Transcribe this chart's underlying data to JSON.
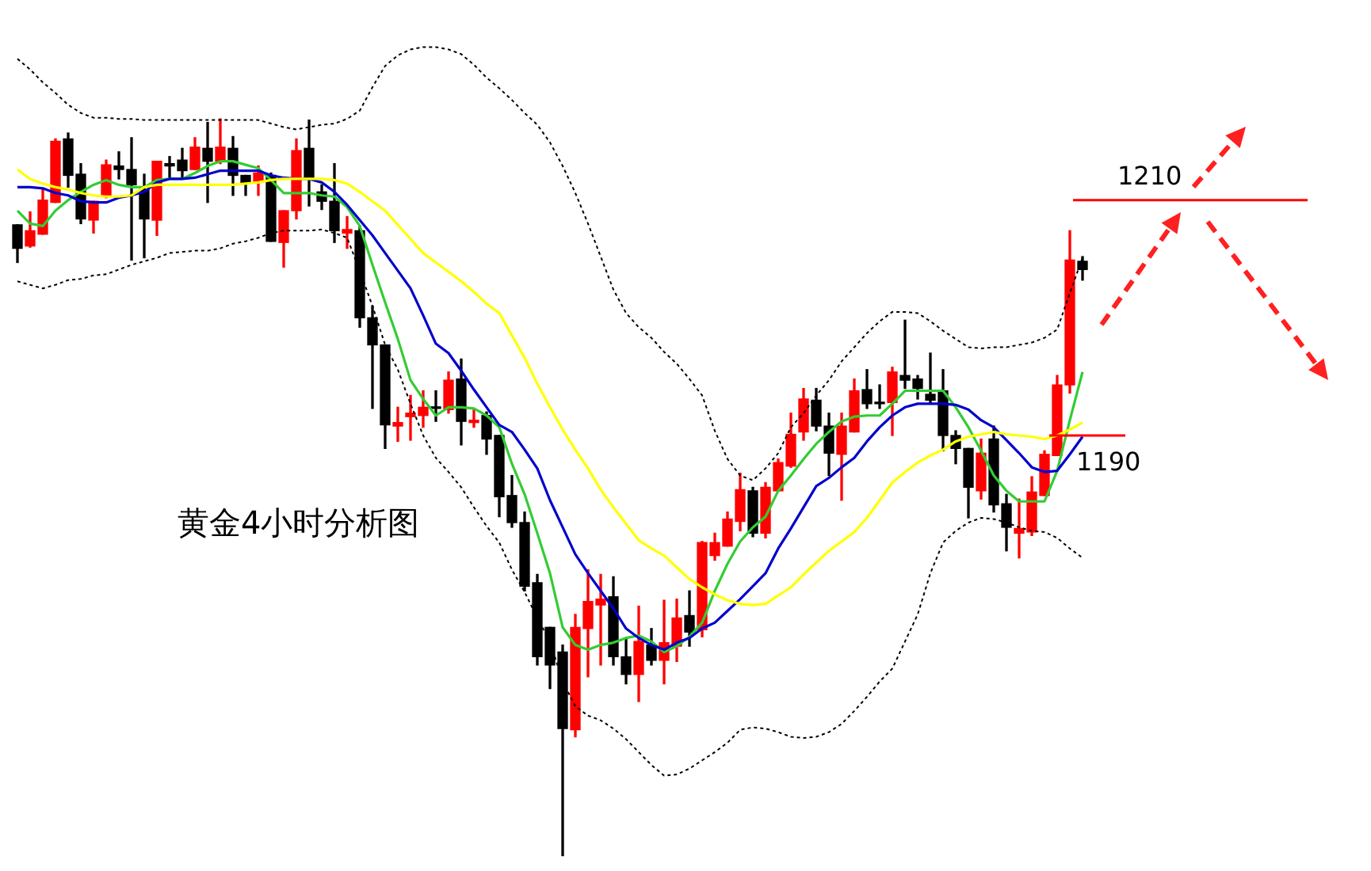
{
  "chart_data": {
    "type": "candlestick",
    "ylim": [
      1153,
      1227
    ],
    "tick_labels": false,
    "annotations": [
      "黄金4小时分析图"
    ],
    "ref_lines": [
      {
        "axis": "y",
        "value": 1210,
        "label": "1210",
        "color": "#ff0000"
      },
      {
        "axis": "y",
        "value": 1190,
        "label": "1190",
        "color": "#ff0000"
      }
    ],
    "categories": [
      null,
      null,
      null,
      null,
      null,
      null,
      null,
      null,
      null,
      null,
      null,
      null,
      null,
      null,
      null,
      null,
      null,
      null,
      null,
      null,
      null,
      null,
      null,
      null,
      null,
      null,
      null,
      null,
      null,
      null,
      null,
      null,
      null,
      null,
      null,
      null,
      null,
      null,
      null,
      null,
      null,
      null,
      null,
      null,
      null,
      null,
      null,
      null,
      null,
      null,
      null,
      null,
      null,
      null,
      null,
      null,
      null,
      null,
      null,
      null,
      null,
      null,
      null,
      null,
      null,
      null,
      null,
      null,
      null,
      null,
      null,
      null,
      null,
      null,
      null,
      null,
      null,
      null,
      null,
      null,
      null,
      null,
      null,
      null,
      null
    ],
    "ohlc": [
      [
        1207.9,
        1207.9,
        1204.7,
        1205.9
      ],
      [
        1206.1,
        1209.0,
        1206.0,
        1207.4
      ],
      [
        1207.1,
        1210.9,
        1207.1,
        1210.0
      ],
      [
        1209.8,
        1215.2,
        1209.8,
        1215.0
      ],
      [
        1215.2,
        1215.7,
        1211.1,
        1212.1
      ],
      [
        1212.2,
        1213.1,
        1208.0,
        1208.4
      ],
      [
        1208.3,
        1209.9,
        1207.2,
        1209.9
      ],
      [
        1210.4,
        1213.4,
        1210.2,
        1213.0
      ],
      [
        1212.9,
        1214.1,
        1211.8,
        1212.6
      ],
      [
        1212.6,
        1215.3,
        1204.9,
        1211.3
      ],
      [
        1210.9,
        1212.2,
        1205.1,
        1208.4
      ],
      [
        1208.3,
        1213.3,
        1207.0,
        1213.3
      ],
      [
        1213.1,
        1213.7,
        1211.8,
        1212.9
      ],
      [
        1213.4,
        1214.4,
        1211.8,
        1212.5
      ],
      [
        1212.6,
        1215.3,
        1212.6,
        1214.5
      ],
      [
        1214.4,
        1216.6,
        1209.8,
        1213.3
      ],
      [
        1213.3,
        1216.9,
        1213.1,
        1214.5
      ],
      [
        1214.4,
        1215.4,
        1210.4,
        1212.1
      ],
      [
        1212.1,
        1212.1,
        1210.4,
        1211.5
      ],
      [
        1211.5,
        1212.9,
        1210.4,
        1212.3
      ],
      [
        1212.1,
        1212.3,
        1206.5,
        1206.5
      ],
      [
        1206.4,
        1209.1,
        1204.3,
        1209.1
      ],
      [
        1209.1,
        1215.2,
        1208.4,
        1214.2
      ],
      [
        1214.4,
        1216.8,
        1209.5,
        1211.9
      ],
      [
        1210.7,
        1211.3,
        1209.2,
        1209.9
      ],
      [
        1209.9,
        1213.1,
        1206.4,
        1207.4
      ],
      [
        1207.2,
        1208.6,
        1205.9,
        1207.5
      ],
      [
        1207.4,
        1207.8,
        1199.2,
        1200.0
      ],
      [
        1200.0,
        1201.0,
        1192.3,
        1197.7
      ],
      [
        1197.7,
        1197.7,
        1188.9,
        1190.9
      ],
      [
        1190.8,
        1192.4,
        1189.5,
        1191.1
      ],
      [
        1191.6,
        1193.4,
        1189.6,
        1191.9
      ],
      [
        1191.7,
        1193.8,
        1190.7,
        1192.4
      ],
      [
        1192.4,
        1193.8,
        1191.2,
        1192.3
      ],
      [
        1192.2,
        1195.4,
        1191.9,
        1194.7
      ],
      [
        1194.8,
        1196.5,
        1189.2,
        1191.2
      ],
      [
        1191.1,
        1192.3,
        1190.7,
        1191.3
      ],
      [
        1191.7,
        1192.0,
        1188.4,
        1189.7
      ],
      [
        1190.0,
        1190.0,
        1183.1,
        1184.8
      ],
      [
        1184.9,
        1186.6,
        1182.2,
        1182.6
      ],
      [
        1182.6,
        1183.5,
        1176.8,
        1177.2
      ],
      [
        1177.5,
        1178.2,
        1170.5,
        1171.2
      ],
      [
        1173.7,
        1173.7,
        1168.5,
        1170.5
      ],
      [
        1171.6,
        1172.2,
        1154.3,
        1165.1
      ],
      [
        1165.0,
        1174.8,
        1164.4,
        1173.7
      ],
      [
        1173.6,
        1178.6,
        1169.5,
        1175.9
      ],
      [
        1175.6,
        1178.2,
        1170.5,
        1176.1
      ],
      [
        1176.3,
        1178.0,
        1170.5,
        1171.2
      ],
      [
        1171.2,
        1172.8,
        1168.9,
        1169.7
      ],
      [
        1169.7,
        1175.5,
        1167.4,
        1172.5
      ],
      [
        1172.2,
        1173.6,
        1170.5,
        1170.9
      ],
      [
        1170.9,
        1176.0,
        1168.9,
        1172.4
      ],
      [
        1172.1,
        1176.1,
        1170.8,
        1174.5
      ],
      [
        1174.7,
        1176.8,
        1172.1,
        1173.3
      ],
      [
        1173.5,
        1181.0,
        1172.9,
        1180.9
      ],
      [
        1179.8,
        1181.7,
        1179.4,
        1180.9
      ],
      [
        1180.6,
        1183.5,
        1180.6,
        1182.9
      ],
      [
        1182.7,
        1186.8,
        1181.9,
        1185.4
      ],
      [
        1185.3,
        1185.6,
        1181.4,
        1181.7
      ],
      [
        1181.7,
        1186.0,
        1181.3,
        1185.6
      ],
      [
        1185.3,
        1188.0,
        1185.3,
        1187.7
      ],
      [
        1187.4,
        1191.9,
        1187.3,
        1190.1
      ],
      [
        1190.3,
        1194.0,
        1189.6,
        1193.1
      ],
      [
        1193.0,
        1194.0,
        1190.4,
        1190.8
      ],
      [
        1190.8,
        1191.9,
        1186.6,
        1188.5
      ],
      [
        1188.4,
        1191.9,
        1184.5,
        1190.8
      ],
      [
        1190.3,
        1194.8,
        1190.3,
        1193.8
      ],
      [
        1193.9,
        1195.6,
        1192.3,
        1192.7
      ],
      [
        1192.8,
        1194.3,
        1192.3,
        1192.7
      ],
      [
        1192.8,
        1195.8,
        1190.0,
        1195.4
      ],
      [
        1195.1,
        1199.8,
        1194.0,
        1194.7
      ],
      [
        1194.8,
        1195.1,
        1193.1,
        1194.0
      ],
      [
        1193.5,
        1197.0,
        1192.7,
        1193.0
      ],
      [
        1193.8,
        1195.6,
        1188.7,
        1190.0
      ],
      [
        1190.0,
        1190.4,
        1187.6,
        1188.9
      ],
      [
        1188.9,
        1188.9,
        1183.0,
        1185.6
      ],
      [
        1185.3,
        1189.7,
        1184.6,
        1188.5
      ],
      [
        1189.7,
        1190.8,
        1183.5,
        1184.1
      ],
      [
        1184.2,
        1185.0,
        1180.2,
        1182.2
      ],
      [
        1181.7,
        1184.6,
        1179.6,
        1182.1
      ],
      [
        1181.8,
        1186.5,
        1181.5,
        1185.2
      ],
      [
        1184.9,
        1188.7,
        1184.9,
        1188.4
      ],
      [
        1188.3,
        1195.1,
        1188.3,
        1194.3
      ],
      [
        1194.3,
        1207.4,
        1193.6,
        1204.9
      ],
      [
        1204.8,
        1205.2,
        1203.2,
        1204.1
      ]
    ],
    "series": [
      {
        "type": "line",
        "color": "#000000",
        "line_style": "dotted",
        "values": [
          1222.0,
          1221.1,
          1220.0,
          1219.1,
          1218.1,
          1217.4,
          1217.0,
          1217.0,
          1216.9,
          1216.9,
          1216.8,
          1216.8,
          1216.8,
          1216.8,
          1216.8,
          1216.8,
          1216.8,
          1216.8,
          1216.8,
          1216.8,
          1216.5,
          1216.2,
          1216.0,
          1216.2,
          1216.4,
          1216.5,
          1216.9,
          1217.6,
          1219.6,
          1221.4,
          1222.3,
          1222.8,
          1223.0,
          1223.0,
          1222.8,
          1222.4,
          1221.5,
          1220.4,
          1219.5,
          1218.5,
          1217.4,
          1216.4,
          1214.9,
          1212.9,
          1210.6,
          1208.0,
          1205.2,
          1202.4,
          1200.4,
          1199.2,
          1198.3,
          1197.1,
          1196.1,
          1194.8,
          1193.4,
          1190.4,
          1188.0,
          1186.6,
          1186.2,
          1187.2,
          1188.5,
          1190.7,
          1191.9,
          1193.4,
          1194.7,
          1196.3,
          1197.5,
          1198.7,
          1199.7,
          1200.5,
          1200.5,
          1200.4,
          1199.7,
          1198.9,
          1198.2,
          1197.5,
          1197.4,
          1197.5,
          1197.5,
          1197.7,
          1197.9,
          1198.3,
          1199.0,
          1202.1,
          1205.1
        ]
      },
      {
        "type": "line",
        "color": "#000000",
        "line_style": "dotted",
        "values": [
          1203.1,
          1202.8,
          1202.5,
          1202.8,
          1203.2,
          1203.3,
          1203.6,
          1203.7,
          1204.1,
          1204.5,
          1204.8,
          1205.1,
          1205.5,
          1205.6,
          1205.7,
          1205.7,
          1205.9,
          1206.3,
          1206.5,
          1206.8,
          1207.2,
          1207.4,
          1207.4,
          1207.4,
          1207.5,
          1207.2,
          1206.8,
          1204.0,
          1201.0,
          1197.7,
          1195.6,
          1192.7,
          1190.0,
          1188.1,
          1186.9,
          1185.6,
          1183.9,
          1182.3,
          1180.9,
          1178.6,
          1176.7,
          1174.5,
          1172.5,
          1169.1,
          1167.0,
          1166.2,
          1165.8,
          1165.1,
          1164.2,
          1163.1,
          1162.0,
          1161.1,
          1161.2,
          1161.7,
          1162.4,
          1163.1,
          1163.9,
          1165.0,
          1165.2,
          1165.1,
          1164.8,
          1164.4,
          1164.3,
          1164.4,
          1164.8,
          1165.5,
          1166.6,
          1167.8,
          1169.1,
          1170.2,
          1172.5,
          1174.8,
          1178.3,
          1180.9,
          1181.9,
          1182.6,
          1183.0,
          1182.9,
          1182.6,
          1182.2,
          1181.9,
          1181.8,
          1181.3,
          1180.4,
          1179.6
        ]
      },
      {
        "type": "line",
        "color": "#ffff00",
        "line_style": "solid",
        "values": [
          1212.6,
          1211.8,
          1211.4,
          1211.1,
          1210.9,
          1210.6,
          1210.4,
          1210.3,
          1210.3,
          1210.4,
          1211.1,
          1211.3,
          1211.3,
          1211.3,
          1211.3,
          1211.3,
          1211.3,
          1211.3,
          1211.4,
          1211.5,
          1211.7,
          1211.8,
          1211.8,
          1211.8,
          1211.8,
          1211.7,
          1211.4,
          1210.7,
          1209.9,
          1209.1,
          1207.9,
          1206.7,
          1205.5,
          1204.7,
          1203.9,
          1203.1,
          1202.2,
          1201.2,
          1200.4,
          1198.5,
          1196.6,
          1194.4,
          1192.4,
          1190.5,
          1188.8,
          1187.2,
          1185.4,
          1183.9,
          1182.5,
          1181.1,
          1180.4,
          1179.8,
          1178.8,
          1177.8,
          1177.1,
          1176.5,
          1176.0,
          1175.7,
          1175.6,
          1175.7,
          1176.4,
          1177.1,
          1178.2,
          1179.2,
          1180.2,
          1181.0,
          1181.8,
          1183.0,
          1184.5,
          1186.0,
          1186.9,
          1187.7,
          1188.3,
          1188.8,
          1189.5,
          1189.9,
          1190.1,
          1190.3,
          1190.1,
          1190.0,
          1189.9,
          1189.7,
          1190.0,
          1190.5,
          1191.1
        ]
      },
      {
        "type": "line",
        "color": "#0000cc",
        "line_style": "solid",
        "values": [
          1211.1,
          1211.1,
          1211.0,
          1210.6,
          1210.4,
          1209.9,
          1209.8,
          1209.8,
          1210.2,
          1210.4,
          1210.7,
          1211.5,
          1211.8,
          1211.8,
          1211.9,
          1212.2,
          1212.5,
          1212.5,
          1212.5,
          1212.5,
          1212.1,
          1211.9,
          1211.8,
          1211.8,
          1211.5,
          1210.7,
          1209.6,
          1208.3,
          1207.0,
          1205.5,
          1204.0,
          1202.5,
          1200.2,
          1197.8,
          1197.0,
          1195.5,
          1193.9,
          1192.4,
          1190.9,
          1190.3,
          1188.8,
          1187.2,
          1184.5,
          1182.2,
          1179.9,
          1178.3,
          1176.8,
          1175.3,
          1173.6,
          1172.8,
          1172.2,
          1171.8,
          1172.4,
          1172.8,
          1173.6,
          1174.1,
          1175.1,
          1176.1,
          1177.2,
          1178.3,
          1180.4,
          1182.1,
          1183.9,
          1185.7,
          1186.4,
          1187.3,
          1188.1,
          1189.5,
          1190.7,
          1191.7,
          1192.4,
          1192.7,
          1192.7,
          1192.7,
          1192.6,
          1192.2,
          1191.3,
          1190.7,
          1189.6,
          1188.5,
          1187.3,
          1186.9,
          1187.0,
          1188.4,
          1189.9
        ]
      },
      {
        "type": "line",
        "color": "#33cc33",
        "line_style": "solid",
        "values": [
          1209.1,
          1208.0,
          1207.8,
          1209.1,
          1210.0,
          1210.7,
          1211.3,
          1211.7,
          1211.3,
          1211.1,
          1211.1,
          1211.7,
          1211.8,
          1211.8,
          1212.3,
          1212.9,
          1213.3,
          1213.3,
          1213.0,
          1212.7,
          1211.7,
          1210.6,
          1210.6,
          1210.6,
          1210.4,
          1210.3,
          1209.4,
          1207.8,
          1204.5,
          1201.3,
          1198.2,
          1194.7,
          1193.1,
          1191.7,
          1192.4,
          1192.4,
          1192.3,
          1191.7,
          1190.7,
          1187.6,
          1185.0,
          1181.7,
          1178.3,
          1173.7,
          1172.2,
          1171.8,
          1172.2,
          1172.4,
          1172.8,
          1173.0,
          1172.5,
          1171.6,
          1172.1,
          1172.9,
          1174.1,
          1176.8,
          1179.1,
          1181.0,
          1182.2,
          1183.1,
          1185.3,
          1186.6,
          1188.0,
          1189.3,
          1190.3,
          1191.2,
          1191.6,
          1191.7,
          1191.7,
          1192.7,
          1193.8,
          1193.8,
          1193.8,
          1193.8,
          1192.4,
          1190.7,
          1188.7,
          1186.6,
          1185.3,
          1184.4,
          1184.4,
          1184.4,
          1187.0,
          1191.3,
          1195.4
        ]
      }
    ]
  }
}
